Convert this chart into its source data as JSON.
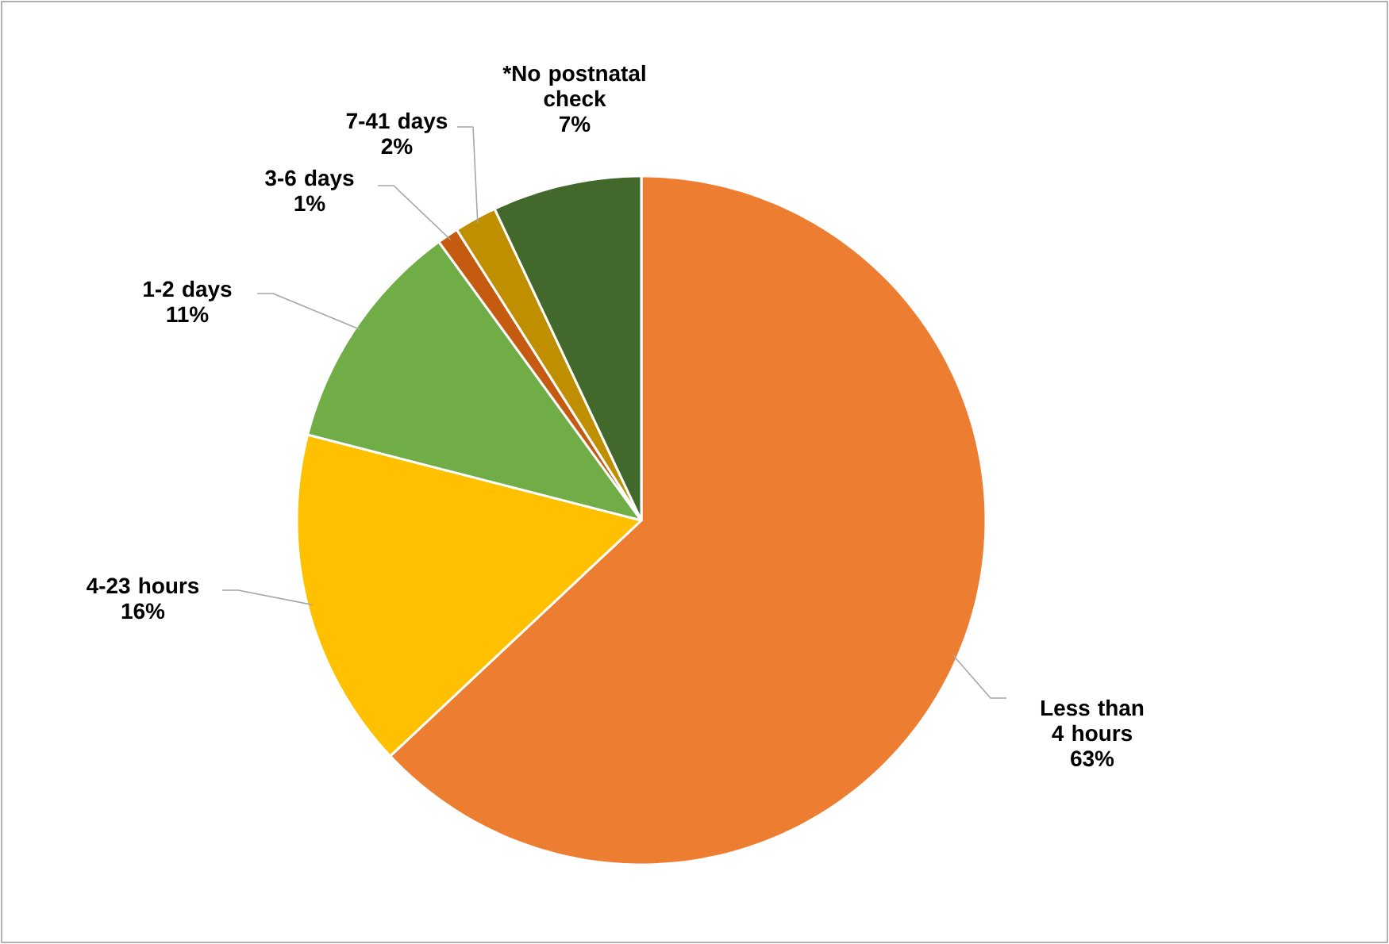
{
  "chart_data": {
    "type": "pie",
    "categories": [
      "Less than 4 hours",
      "4-23 hours",
      "1-2 days",
      "3-6 days",
      "7-41 days",
      "*No postnatal check"
    ],
    "values": [
      63,
      16,
      11,
      1,
      2,
      7
    ],
    "value_labels": [
      "63%",
      "16%",
      "11%",
      "1%",
      "2%",
      "7%"
    ],
    "colors": [
      "#ed7d31",
      "#ffc000",
      "#70ad47",
      "#c55a11",
      "#bf8f00",
      "#43682b"
    ]
  }
}
